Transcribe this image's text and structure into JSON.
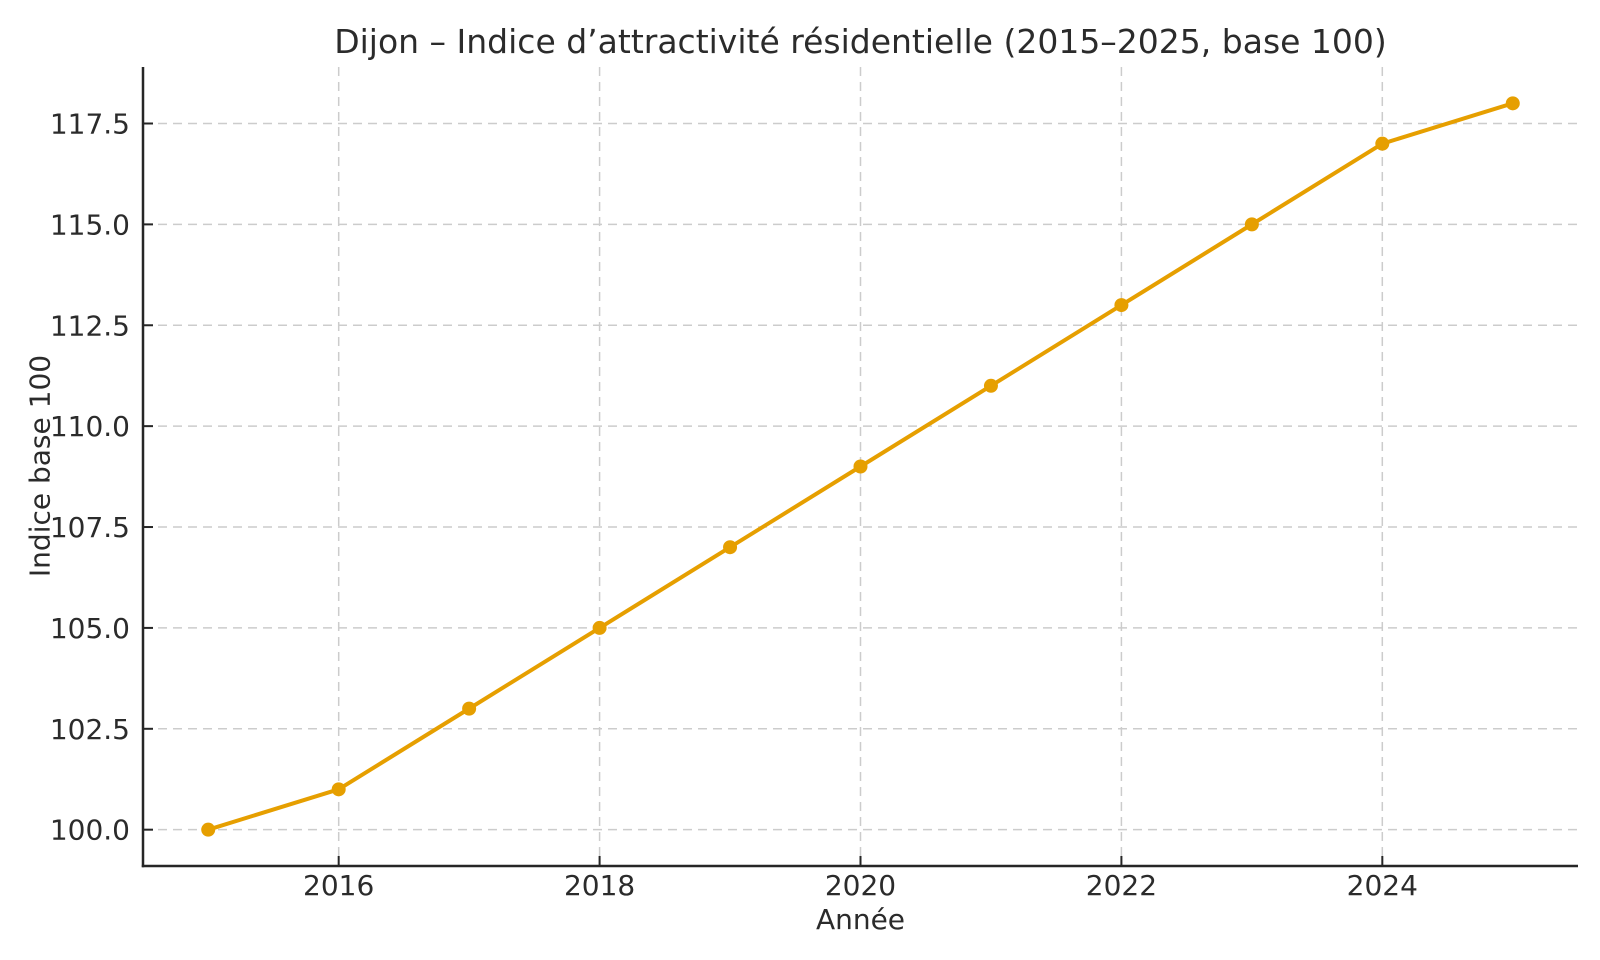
{
  "chart_data": {
    "type": "line",
    "title": "Dijon – Indice d’attractivité résidentielle (2015–2025, base 100)",
    "xlabel": "Année",
    "ylabel": "Indice base 100",
    "x": [
      2015,
      2016,
      2017,
      2018,
      2019,
      2020,
      2021,
      2022,
      2023,
      2024,
      2025
    ],
    "values": [
      100,
      101,
      103,
      105,
      107,
      109,
      111,
      113,
      115,
      117,
      118
    ],
    "xlim": [
      2014.5,
      2025.5
    ],
    "ylim": [
      99.1,
      118.9
    ],
    "xticks": [
      2016,
      2018,
      2020,
      2022,
      2024
    ],
    "xtick_labels": [
      "2016",
      "2018",
      "2020",
      "2022",
      "2024"
    ],
    "yticks": [
      100.0,
      102.5,
      105.0,
      107.5,
      110.0,
      112.5,
      115.0,
      117.5
    ],
    "ytick_labels": [
      "100.0",
      "102.5",
      "105.0",
      "107.5",
      "110.0",
      "112.5",
      "115.0",
      "117.5"
    ],
    "grid": "both-dashed",
    "legend_position": "none",
    "line_color": "#E69F00",
    "marker": "circle"
  },
  "style": {
    "grid_color": "#cccccc",
    "spine_color": "#262626",
    "tick_color": "#262626",
    "text_color": "#2b2b2b",
    "background": "#ffffff"
  }
}
